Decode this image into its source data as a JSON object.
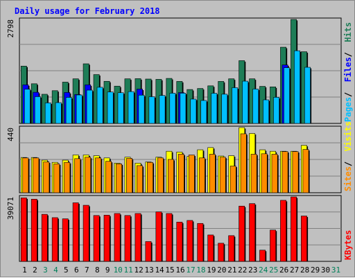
{
  "chart_data": [
    {
      "type": "bar",
      "title": "Daily usage for February 2018",
      "categories": [
        "1",
        "2",
        "3",
        "4",
        "5",
        "6",
        "7",
        "8",
        "9",
        "10",
        "11",
        "12",
        "13",
        "14",
        "15",
        "16",
        "17",
        "18",
        "19",
        "20",
        "21",
        "22",
        "23",
        "24",
        "25",
        "26",
        "27",
        "28",
        "29",
        "30",
        "31"
      ],
      "weekend_days": [
        "3",
        "4",
        "10",
        "11",
        "17",
        "18",
        "24",
        "25",
        "31"
      ],
      "ylabels": [
        "2798"
      ],
      "ymax": 2798,
      "series": [
        {
          "name": "Hits",
          "color": "#1e7d57",
          "values": [
            1542,
            1067,
            784,
            881,
            1111,
            1200,
            1604,
            1314,
            1133,
            1003,
            1200,
            1204,
            1194,
            1186,
            1211,
            1130,
            912,
            940,
            1011,
            1130,
            1200,
            1689,
            1200,
            997,
            983,
            2051,
            2798,
            1929,
            0,
            0,
            0
          ]
        },
        {
          "name": "Files",
          "color": "#0000ff",
          "values": [
            1038,
            837,
            0,
            0,
            832,
            779,
            1038,
            0,
            0,
            0,
            0,
            923,
            0,
            0,
            0,
            830,
            0,
            0,
            0,
            0,
            0,
            0,
            0,
            0,
            0,
            1573,
            0,
            0,
            0,
            0,
            0
          ]
        },
        {
          "name": "Pages",
          "color": "#00bfff",
          "values": [
            920,
            720,
            552,
            559,
            700,
            765,
            895,
            972,
            845,
            826,
            856,
            760,
            718,
            752,
            813,
            813,
            654,
            617,
            811,
            786,
            961,
            1137,
            925,
            634,
            703,
            1499,
            1955,
            1510,
            0,
            0,
            0
          ]
        }
      ],
      "series_labels": [
        "Pages",
        "Files",
        "Hits"
      ]
    },
    {
      "type": "bar",
      "ylabels": [
        "440"
      ],
      "ymax": 440,
      "series": [
        {
          "name": "Visits",
          "color": "#ffff00",
          "values": [
            238,
            238,
            220,
            205,
            220,
            255,
            255,
            250,
            235,
            200,
            240,
            200,
            208,
            240,
            280,
            275,
            245,
            290,
            305,
            248,
            250,
            440,
            400,
            290,
            280,
            280,
            280,
            320,
            0,
            0,
            0
          ]
        },
        {
          "name": "Sites",
          "color": "#ff8c00",
          "values": [
            235,
            235,
            208,
            195,
            205,
            230,
            240,
            235,
            212,
            195,
            232,
            183,
            205,
            235,
            225,
            260,
            255,
            235,
            260,
            240,
            180,
            398,
            260,
            263,
            260,
            278,
            278,
            292,
            0,
            0,
            0
          ]
        }
      ],
      "series_labels": [
        "Sites",
        "Visits"
      ]
    },
    {
      "type": "bar",
      "ylabels": [
        "39071"
      ],
      "ymax": 39071,
      "series": [
        {
          "name": "KBytes",
          "color": "#ff0000",
          "values": [
            38500,
            37700,
            28500,
            26500,
            25800,
            35500,
            34000,
            27800,
            28000,
            29000,
            27800,
            29000,
            12000,
            30000,
            29000,
            23800,
            24800,
            23000,
            16000,
            11000,
            15600,
            33500,
            35000,
            6800,
            19000,
            37000,
            39071,
            27500,
            0,
            0,
            0
          ]
        }
      ],
      "series_labels": [
        "KBytes"
      ]
    }
  ]
}
